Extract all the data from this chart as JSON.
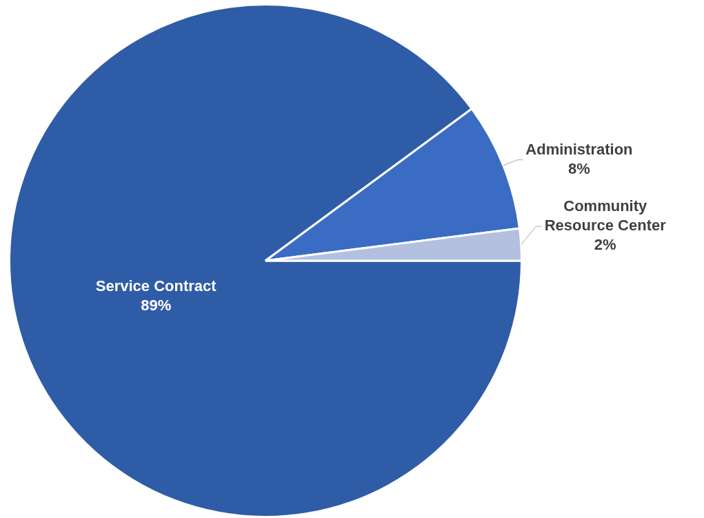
{
  "chart_data": {
    "type": "pie",
    "categories": [
      "Service Contract",
      "Administration",
      "Community Resource Center"
    ],
    "values": [
      89,
      8,
      2
    ],
    "colors": [
      "#2f5ca6",
      "#3b6cc4",
      "#b4c0e0"
    ],
    "value_labels": [
      "89%",
      "8%",
      "2%"
    ],
    "legend": false
  }
}
